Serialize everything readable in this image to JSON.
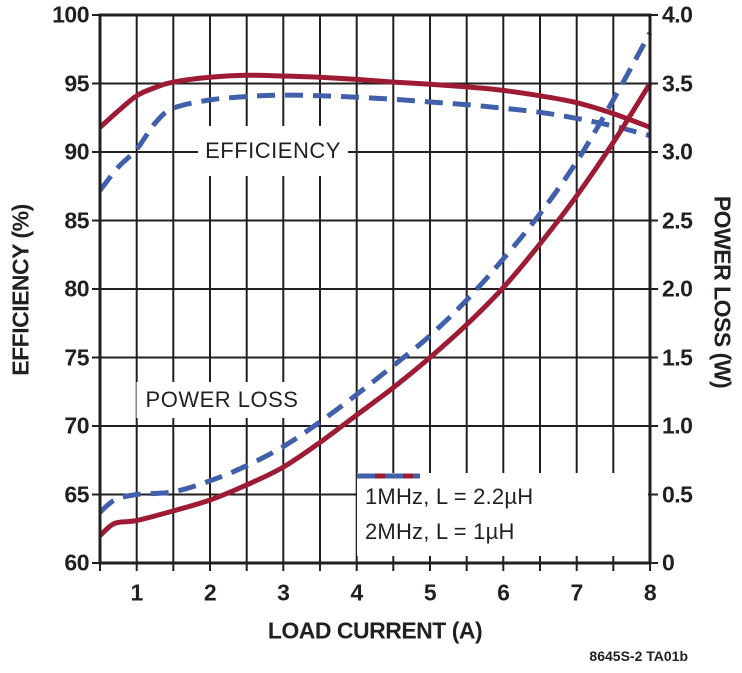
{
  "figure": {
    "footnote": "8645S-2 TA01b",
    "background": "#ffffff"
  },
  "palette": {
    "ink": "#231F20",
    "red": "#9E1B34",
    "blue": "#4060AC"
  },
  "chart_data": {
    "type": "line",
    "title": "",
    "xlabel": "LOAD CURRENT (A)",
    "ylabel_left": "EFFICIENCY (%)",
    "ylabel_right": "POWER LOSS (W)",
    "x_range": [
      0.5,
      8
    ],
    "x_gridline_step": 0.5,
    "x_tick_labels": [
      "1",
      "2",
      "3",
      "4",
      "5",
      "6",
      "7",
      "8"
    ],
    "y_left_range": [
      60,
      100
    ],
    "y_left_tick_labels": [
      "100",
      "95",
      "90",
      "85",
      "80",
      "75",
      "70",
      "65",
      "60"
    ],
    "y_right_range": [
      0,
      4
    ],
    "y_right_tick_labels": [
      "4.0",
      "3.5",
      "3.0",
      "2.5",
      "2.0",
      "1.5",
      "1.0",
      "0.5",
      "0"
    ],
    "grid": true,
    "grid_color": "#231F20",
    "annotations": [
      {
        "text": "EFFICIENCY"
      },
      {
        "text": "POWER LOSS"
      }
    ],
    "legend": {
      "position": "bottom-right",
      "entries": [
        {
          "label": "1MHz, L = 2.2µH",
          "color": "#9E1B34",
          "style": "solid"
        },
        {
          "label": "2MHz, L = 1µH",
          "color": "#4060AC",
          "style": "dashed"
        }
      ]
    },
    "series": [
      {
        "name": "efficiency-1mhz-2.2uH",
        "axis": "left",
        "color": "#9E1B34",
        "style": "solid",
        "x": [
          0.5,
          0.75,
          1,
          1.25,
          1.5,
          2,
          2.5,
          3,
          3.5,
          4,
          4.5,
          5,
          5.5,
          6,
          6.5,
          7,
          7.5,
          8
        ],
        "y": [
          91.8,
          93.0,
          94.1,
          94.7,
          95.1,
          95.45,
          95.6,
          95.55,
          95.45,
          95.3,
          95.1,
          94.95,
          94.75,
          94.5,
          94.1,
          93.6,
          92.8,
          91.8
        ]
      },
      {
        "name": "efficiency-2mhz-1uH",
        "axis": "left",
        "color": "#4060AC",
        "style": "dashed",
        "x": [
          0.5,
          0.75,
          1,
          1.25,
          1.5,
          2,
          2.5,
          3,
          3.5,
          4,
          4.5,
          5,
          5.5,
          6,
          6.5,
          7,
          7.5,
          8
        ],
        "y": [
          87.2,
          88.9,
          90.2,
          92.1,
          93.2,
          93.8,
          94.05,
          94.15,
          94.1,
          94.0,
          93.85,
          93.65,
          93.45,
          93.2,
          92.9,
          92.45,
          91.9,
          91.2
        ]
      },
      {
        "name": "powerloss-1mhz-2.2uH",
        "axis": "right",
        "color": "#9E1B34",
        "style": "solid",
        "x": [
          0.5,
          0.7,
          1,
          1.5,
          2,
          2.5,
          3,
          3.5,
          4,
          4.5,
          5,
          5.5,
          6,
          6.5,
          7,
          7.5,
          8
        ],
        "y": [
          0.2,
          0.29,
          0.31,
          0.38,
          0.46,
          0.57,
          0.7,
          0.88,
          1.08,
          1.28,
          1.5,
          1.74,
          2.01,
          2.33,
          2.68,
          3.07,
          3.5
        ]
      },
      {
        "name": "powerloss-2mhz-1uH",
        "axis": "right",
        "color": "#4060AC",
        "style": "dashed",
        "x": [
          0.5,
          0.7,
          1,
          1.5,
          2,
          2.5,
          3,
          3.5,
          4,
          4.5,
          5,
          5.5,
          6,
          6.5,
          7,
          7.5,
          8
        ],
        "y": [
          0.37,
          0.46,
          0.5,
          0.52,
          0.6,
          0.71,
          0.85,
          1.03,
          1.23,
          1.44,
          1.66,
          1.92,
          2.22,
          2.55,
          2.93,
          3.38,
          3.87
        ]
      }
    ]
  }
}
